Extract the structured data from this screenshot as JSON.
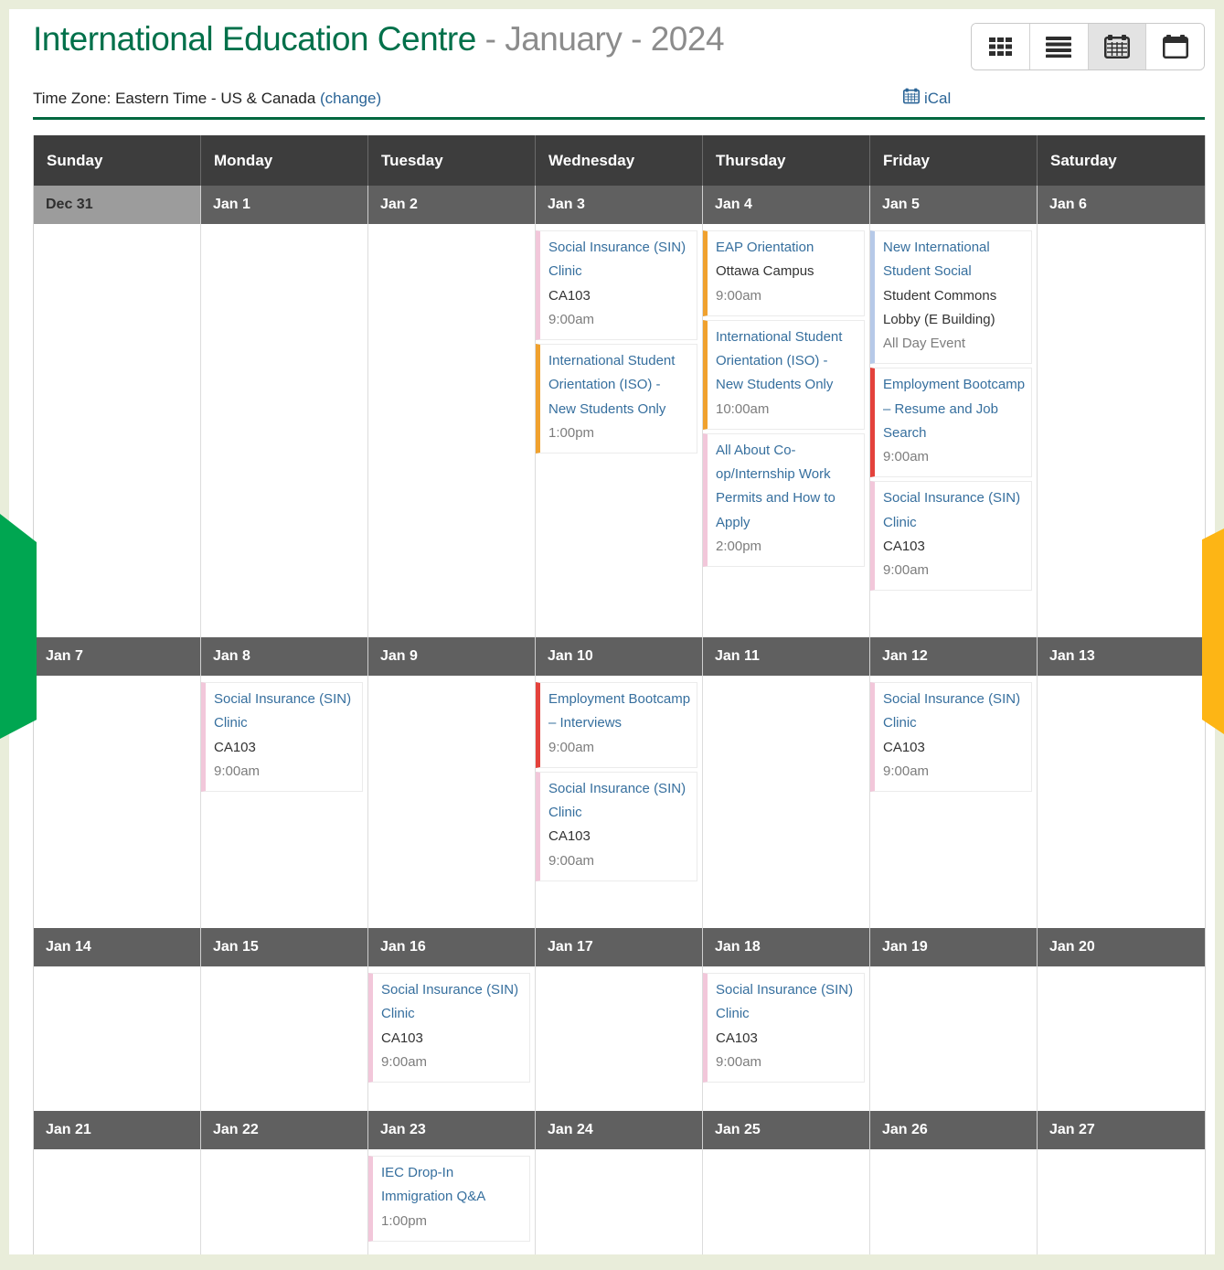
{
  "header": {
    "title_primary": "International Education Centre",
    "title_separator": "-",
    "title_secondary": "January - 2024",
    "timezone_label": "Time Zone: Eastern Time - US & Canada",
    "timezone_change_link": "(change)",
    "ical_label": "iCal"
  },
  "toolbar": {
    "views": [
      {
        "id": "grid",
        "icon": "grid-view-icon",
        "active": false
      },
      {
        "id": "list",
        "icon": "list-view-icon",
        "active": false
      },
      {
        "id": "month",
        "icon": "month-view-icon",
        "active": true
      },
      {
        "id": "week",
        "icon": "week-view-icon",
        "active": false
      }
    ]
  },
  "colors": {
    "brand_green": "#00704A",
    "rule_green": "#00683F",
    "link_blue": "#2A6496",
    "event_title_blue": "#366F9E",
    "accent_pink": "#F2C7DA",
    "accent_orange": "#F0A12E",
    "accent_red": "#E4423C",
    "accent_blue": "#B6C9E8",
    "edge_green": "#00A651",
    "edge_yellow": "#FDB515",
    "day_header_bg": "#3D3D3D",
    "date_band_bg": "#606060",
    "muted_date_bg": "#9C9C9C"
  },
  "calendar": {
    "day_headers": [
      "Sunday",
      "Monday",
      "Tuesday",
      "Wednesday",
      "Thursday",
      "Friday",
      "Saturday"
    ],
    "weeks": [
      {
        "days": [
          {
            "date": "Dec 31",
            "muted": true,
            "events": []
          },
          {
            "date": "Jan 1",
            "events": []
          },
          {
            "date": "Jan 2",
            "events": []
          },
          {
            "date": "Jan 3",
            "events": [
              {
                "title": "Social Insurance (SIN) Clinic",
                "location": "CA103",
                "time": "9:00am",
                "accent": "pink"
              },
              {
                "title": "International Student Orientation (ISO) - New Students Only",
                "time": "1:00pm",
                "accent": "orange"
              }
            ]
          },
          {
            "date": "Jan 4",
            "events": [
              {
                "title": "EAP Orientation",
                "location": "Ottawa Campus",
                "time": "9:00am",
                "accent": "orange"
              },
              {
                "title": "International Student Orientation (ISO) - New Students Only",
                "time": "10:00am",
                "accent": "orange"
              },
              {
                "title": "All About Co-op/Internship Work Permits and How to Apply",
                "time": "2:00pm",
                "accent": "pink"
              }
            ]
          },
          {
            "date": "Jan 5",
            "events": [
              {
                "title": "New International Student Social",
                "location": "Student Commons Lobby (E Building)",
                "time": "All Day Event",
                "accent": "blue"
              },
              {
                "title": "Employment Bootcamp – Resume and Job Search",
                "time": "9:00am",
                "accent": "red"
              },
              {
                "title": "Social Insurance (SIN) Clinic",
                "location": "CA103",
                "time": "9:00am",
                "accent": "pink"
              }
            ]
          },
          {
            "date": "Jan 6",
            "events": []
          }
        ]
      },
      {
        "days": [
          {
            "date": "Jan 7",
            "events": []
          },
          {
            "date": "Jan 8",
            "events": [
              {
                "title": "Social Insurance (SIN) Clinic",
                "location": "CA103",
                "time": "9:00am",
                "accent": "pink"
              }
            ]
          },
          {
            "date": "Jan 9",
            "events": []
          },
          {
            "date": "Jan 10",
            "events": [
              {
                "title": "Employment Bootcamp – Interviews",
                "time": "9:00am",
                "accent": "red"
              },
              {
                "title": "Social Insurance (SIN) Clinic",
                "location": "CA103",
                "time": "9:00am",
                "accent": "pink"
              }
            ]
          },
          {
            "date": "Jan 11",
            "events": []
          },
          {
            "date": "Jan 12",
            "events": [
              {
                "title": "Social Insurance (SIN) Clinic",
                "location": "CA103",
                "time": "9:00am",
                "accent": "pink"
              }
            ]
          },
          {
            "date": "Jan 13",
            "events": []
          }
        ]
      },
      {
        "days": [
          {
            "date": "Jan 14",
            "events": []
          },
          {
            "date": "Jan 15",
            "events": []
          },
          {
            "date": "Jan 16",
            "events": [
              {
                "title": "Social Insurance (SIN) Clinic",
                "location": "CA103",
                "time": "9:00am",
                "accent": "pink"
              }
            ]
          },
          {
            "date": "Jan 17",
            "events": []
          },
          {
            "date": "Jan 18",
            "events": [
              {
                "title": "Social Insurance (SIN) Clinic",
                "location": "CA103",
                "time": "9:00am",
                "accent": "pink"
              }
            ]
          },
          {
            "date": "Jan 19",
            "events": []
          },
          {
            "date": "Jan 20",
            "events": []
          }
        ]
      },
      {
        "days": [
          {
            "date": "Jan 21",
            "events": []
          },
          {
            "date": "Jan 22",
            "events": []
          },
          {
            "date": "Jan 23",
            "events": [
              {
                "title": "IEC Drop-In Immigration Q&A",
                "time": "1:00pm",
                "accent": "pink"
              }
            ]
          },
          {
            "date": "Jan 24",
            "events": []
          },
          {
            "date": "Jan 25",
            "events": []
          },
          {
            "date": "Jan 26",
            "events": []
          },
          {
            "date": "Jan 27",
            "events": []
          }
        ]
      }
    ]
  }
}
